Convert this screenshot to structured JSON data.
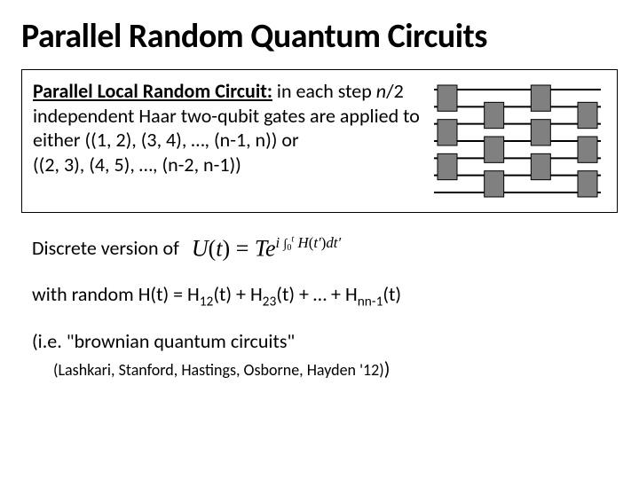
{
  "title": "Parallel Random Quantum Circuits",
  "box": {
    "lead": "Parallel Local Random Circuit:",
    "body_parts": [
      " in each step ",
      "n",
      "/2 independent Haar two-qubit gates are applied to either ((1, 2), (3, 4), …, (n-1, n)) or",
      "((2, 3), (4, 5), …, (n-2, n-1))"
    ]
  },
  "discrete_label": "Discrete version of",
  "formula": {
    "U": "U",
    "t": "t",
    "eq": " = ",
    "T": "T",
    "e": "e",
    "i": "i",
    "int": "∫",
    "lo": "0",
    "hi": "t",
    "H": "H",
    "tp": "t′",
    "dtp": "dt′"
  },
  "random_h": {
    "prefix": "with random H(t) = H",
    "s1": "12",
    "mid1": "(t) + H",
    "s2": "23",
    "mid2": "(t) + … + H",
    "s3": "nn-1",
    "suffix": "(t)"
  },
  "brownian": "(i.e. \"brownian quantum circuits\"",
  "citation": "(Lashkari, Stanford, Hastings, Osborne, Hayden '12)",
  "close_paren": ")",
  "circuit": {
    "n_wires": 7,
    "n_layers": 4,
    "wire_color": "#000000",
    "gate_fill": "#808080",
    "gate_stroke": "#000000",
    "bg": "#ffffff"
  }
}
